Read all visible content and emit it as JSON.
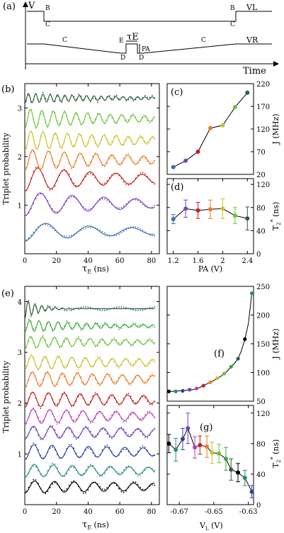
{
  "panel_labels": {
    "a": "(a)",
    "b": "(b)",
    "c": "(c)",
    "d": "(d)",
    "e": "(e)",
    "f": "(f)",
    "g": "(g)"
  },
  "pulse_diagram": {
    "y_label": "V",
    "x_label": "Time",
    "top_trace_label": "VL",
    "bottom_trace_label": "VR",
    "tau_label": "τE",
    "pa_label": "PA",
    "point_labels_top": [
      "B",
      "C",
      "B",
      "C"
    ],
    "point_labels_bottom": [
      "C",
      "E",
      "D",
      "D",
      "C"
    ]
  },
  "colors": {
    "b_series": [
      "#3f6eae",
      "#7b3fbf",
      "#c41f1f",
      "#ee7a22",
      "#c9c12a",
      "#6cc33a",
      "#2e5f3f"
    ],
    "e_series": [
      "#000000",
      "#2a8a7a",
      "#2e3f9a",
      "#6a3fbf",
      "#b63fb3",
      "#c41f1f",
      "#ee7a22",
      "#c9c12a",
      "#6cc33a",
      "#3aaa3a",
      "#2e5f3f"
    ]
  },
  "chart_data": [
    {
      "id": "b",
      "type": "line",
      "xlabel": "τE (ns)",
      "ylabel": "Triplet probability",
      "xlim": [
        0,
        85
      ],
      "ylim": [
        0,
        3.5
      ],
      "xticks": [
        0,
        20,
        40,
        60,
        80
      ],
      "yticks": [
        1,
        2,
        3
      ],
      "series_params": [
        {
          "offset": 0.46,
          "amp": 0.2,
          "period": 27.0,
          "decay": 70
        },
        {
          "offset": 1.03,
          "amp": 0.25,
          "period": 20.0,
          "decay": 80
        },
        {
          "offset": 1.54,
          "amp": 0.25,
          "period": 16.5,
          "decay": 76
        },
        {
          "offset": 1.93,
          "amp": 0.22,
          "period": 10.0,
          "decay": 77
        },
        {
          "offset": 2.33,
          "amp": 0.2,
          "period": 7.7,
          "decay": 78
        },
        {
          "offset": 2.78,
          "amp": 0.2,
          "period": 7.2,
          "decay": 66
        },
        {
          "offset": 3.2,
          "amp": 0.1,
          "period": 4.6,
          "decay": 60
        }
      ]
    },
    {
      "id": "c",
      "type": "scatter",
      "xlabel": "",
      "ylabel": "J (MHz)",
      "xlim": [
        1.1,
        2.5
      ],
      "ylim": [
        20,
        220
      ],
      "yticks": [
        20,
        70,
        120,
        170,
        220
      ],
      "x": [
        1.2,
        1.4,
        1.6,
        1.8,
        2.0,
        2.2,
        2.4
      ],
      "y": [
        36,
        50,
        70,
        122,
        128,
        168,
        200
      ]
    },
    {
      "id": "d",
      "type": "scatter",
      "xlabel": "PA (V)",
      "ylabel": "T2* (ns)",
      "xlim": [
        1.1,
        2.5
      ],
      "ylim": [
        0,
        130
      ],
      "xticks": [
        1.2,
        1.6,
        2.0,
        2.4
      ],
      "yticks": [
        0,
        40,
        80,
        120
      ],
      "x": [
        1.2,
        1.4,
        1.6,
        1.8,
        2.0,
        2.2,
        2.4
      ],
      "y": [
        60,
        78,
        75,
        77,
        78,
        66,
        61
      ],
      "yerr": [
        8,
        15,
        14,
        16,
        17,
        14,
        20
      ]
    },
    {
      "id": "e",
      "type": "line",
      "xlabel": "τE (ns)",
      "ylabel": "Triplet probability",
      "xlim": [
        0,
        85
      ],
      "ylim": [
        0,
        4.3
      ],
      "xticks": [
        0,
        20,
        40,
        60,
        80
      ],
      "yticks": [
        1,
        2,
        3,
        4
      ],
      "series_params": [
        {
          "offset": 0.35,
          "amp": 0.12,
          "period": 12.5,
          "decay": 160
        },
        {
          "offset": 0.67,
          "amp": 0.13,
          "period": 12.0,
          "decay": 125
        },
        {
          "offset": 1.04,
          "amp": 0.15,
          "period": 11.5,
          "decay": 120
        },
        {
          "offset": 1.42,
          "amp": 0.13,
          "period": 11.0,
          "decay": 140
        },
        {
          "offset": 1.74,
          "amp": 0.15,
          "period": 10.5,
          "decay": 110
        },
        {
          "offset": 2.07,
          "amp": 0.15,
          "period": 10.0,
          "decay": 130
        },
        {
          "offset": 2.47,
          "amp": 0.15,
          "period": 9.5,
          "decay": 120
        },
        {
          "offset": 2.8,
          "amp": 0.14,
          "period": 8.5,
          "decay": 100
        },
        {
          "offset": 3.2,
          "amp": 0.12,
          "period": 7.5,
          "decay": 80
        },
        {
          "offset": 3.52,
          "amp": 0.12,
          "period": 6.0,
          "decay": 50
        },
        {
          "offset": 3.86,
          "amp": 0.2,
          "period": 4.3,
          "decay": 9
        }
      ]
    },
    {
      "id": "f",
      "type": "scatter",
      "xlabel": "",
      "ylabel": "J (MHz)",
      "xlim": [
        -0.677,
        -0.627
      ],
      "ylim": [
        50,
        250
      ],
      "yticks": [
        50,
        100,
        150,
        200,
        250
      ],
      "x": [
        -0.676,
        -0.674,
        -0.672,
        -0.67,
        -0.668,
        -0.666,
        -0.664,
        -0.662,
        -0.66,
        -0.658,
        -0.656,
        -0.654,
        -0.652,
        -0.65,
        -0.648,
        -0.646,
        -0.644,
        -0.642,
        -0.64,
        -0.638,
        -0.636,
        -0.634,
        -0.632,
        -0.63,
        -0.628
      ],
      "y": [
        67,
        67,
        68,
        68,
        68,
        69,
        70,
        70,
        72,
        74,
        77,
        80,
        83,
        86,
        90,
        93,
        98,
        103,
        110,
        116,
        124,
        138,
        158,
        185,
        238
      ],
      "markers_x": [
        -0.676,
        -0.672,
        -0.668,
        -0.664,
        -0.66,
        -0.656,
        -0.652,
        -0.648,
        -0.644,
        -0.64,
        -0.636,
        -0.632,
        -0.628
      ],
      "markers_y": [
        67,
        67,
        68,
        70,
        72,
        77,
        83,
        90,
        98,
        110,
        124,
        158,
        238
      ]
    },
    {
      "id": "g",
      "type": "scatter",
      "xlabel": "VL (V)",
      "ylabel": "T2* (ns)",
      "xlim": [
        -0.677,
        -0.627
      ],
      "ylim": [
        0,
        130
      ],
      "xticks": [
        -0.67,
        -0.65,
        -0.63
      ],
      "yticks": [
        0,
        40,
        80,
        120
      ],
      "x": [
        -0.676,
        -0.672,
        -0.668,
        -0.665,
        -0.661,
        -0.658,
        -0.654,
        -0.651,
        -0.647,
        -0.643,
        -0.64,
        -0.636,
        -0.632,
        -0.628
      ],
      "y": [
        80,
        72,
        86,
        100,
        75,
        78,
        76,
        68,
        67,
        60,
        46,
        42,
        35,
        17
      ],
      "yerr": [
        12,
        15,
        14,
        20,
        14,
        12,
        14,
        14,
        12,
        15,
        14,
        12,
        10,
        8
      ]
    }
  ]
}
